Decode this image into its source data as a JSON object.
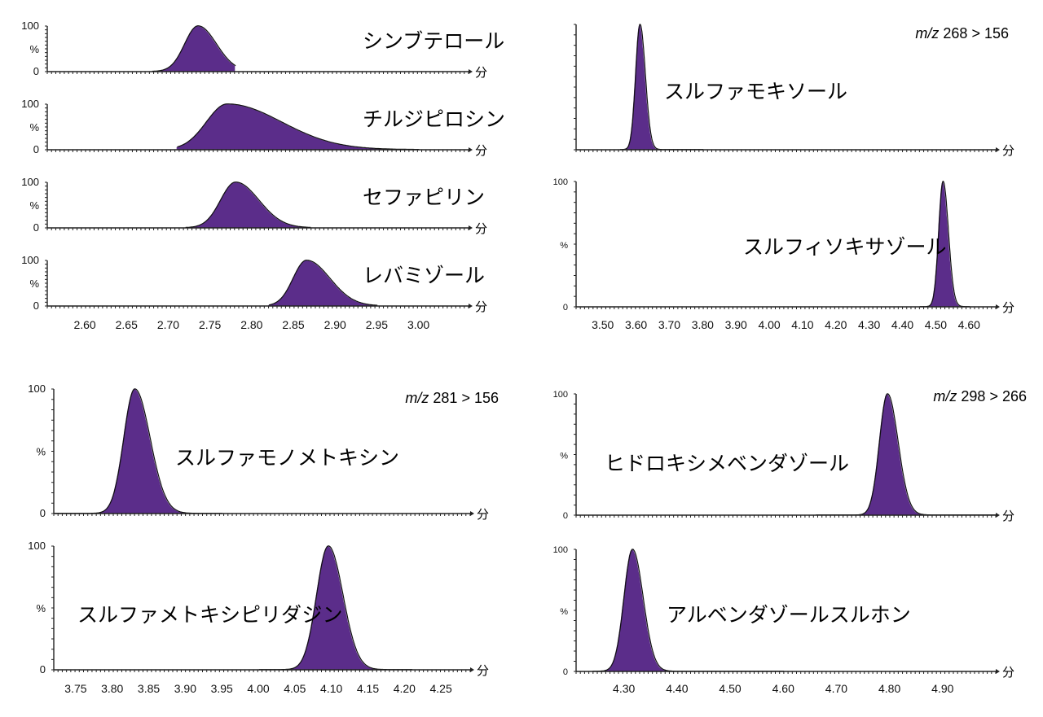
{
  "colors": {
    "peak_fill": "#5b2d8a",
    "peak_outline": "#111111",
    "axis": "#222222"
  },
  "chart_data": [
    {
      "type": "area",
      "x_unit": "分",
      "xlim": [
        2.555,
        3.06
      ],
      "xticks": [
        "2.60",
        "2.65",
        "2.70",
        "2.75",
        "2.80",
        "2.85",
        "2.90",
        "2.95",
        "3.00"
      ],
      "panels": [
        {
          "name": "シンブテロール",
          "yticks": [
            "100",
            "%",
            "0"
          ],
          "apex": 2.735,
          "width": 0.016,
          "tail": 0.006,
          "x_start": 2.68,
          "x_end": 2.78
        },
        {
          "name": "チルジピロシン",
          "yticks": [
            "100",
            "%",
            "0"
          ],
          "apex": 2.77,
          "width": 0.025,
          "tail": 0.04,
          "x_start": 2.71,
          "x_end": 3.0
        },
        {
          "name": "セファピリン",
          "yticks": [
            "100",
            "%",
            "0"
          ],
          "apex": 2.78,
          "width": 0.018,
          "tail": 0.01,
          "x_start": 2.72,
          "x_end": 2.87
        },
        {
          "name": "レバミゾール",
          "yticks": [
            "100",
            "%",
            "0"
          ],
          "apex": 2.865,
          "width": 0.016,
          "tail": 0.012,
          "x_start": 2.82,
          "x_end": 2.95
        }
      ]
    },
    {
      "type": "area",
      "x_unit": "分",
      "xlim": [
        3.42,
        4.68
      ],
      "xticks": [
        "3.50",
        "3.60",
        "3.70",
        "3.80",
        "3.90",
        "4.00",
        "4.10",
        "4.20",
        "4.30",
        "4.40",
        "4.50",
        "4.60"
      ],
      "transition": {
        "prefix": "m/z",
        "text": " 268 > 156"
      },
      "panels": [
        {
          "name": "スルファモキソール",
          "yticks": [],
          "apex": 3.61,
          "width": 0.013,
          "tail": 0.003,
          "x_start": 3.55,
          "x_end": 3.8
        },
        {
          "name": "スルフィソキサゾール",
          "yticks": [
            "100",
            "%",
            "0"
          ],
          "apex": 4.52,
          "width": 0.013,
          "tail": 0.003,
          "x_start": 4.45,
          "x_end": 4.6
        }
      ]
    },
    {
      "type": "area",
      "x_unit": "分",
      "xlim": [
        3.72,
        4.29
      ],
      "xticks": [
        "3.75",
        "3.80",
        "3.85",
        "3.90",
        "3.95",
        "4.00",
        "4.05",
        "4.10",
        "4.15",
        "4.20",
        "4.25"
      ],
      "transition": {
        "prefix": "m/z",
        "text": " 281 > 156"
      },
      "panels": [
        {
          "name": "スルファモノメトキシン",
          "yticks": [
            "100",
            "%",
            "0"
          ],
          "apex": 3.83,
          "width": 0.015,
          "tail": 0.006,
          "x_start": 3.72,
          "x_end": 3.95
        },
        {
          "name": "スルファメトキシピリダジン",
          "yticks": [
            "100",
            "%",
            "0"
          ],
          "apex": 4.095,
          "width": 0.016,
          "tail": 0.004,
          "x_start": 4.0,
          "x_end": 4.21
        }
      ]
    },
    {
      "type": "area",
      "x_unit": "分",
      "xlim": [
        4.21,
        5.0
      ],
      "xticks": [
        "4.30",
        "4.40",
        "4.50",
        "4.60",
        "4.70",
        "4.80",
        "4.90"
      ],
      "transition": {
        "prefix": "m/z",
        "text": " 298 > 266"
      },
      "panels": [
        {
          "name": "ヒドロキシメベンダゾール",
          "yticks": [
            "100",
            "%",
            "0"
          ],
          "apex": 4.795,
          "width": 0.015,
          "tail": 0.005,
          "x_start": 4.66,
          "x_end": 5.0
        },
        {
          "name": "アルベンダゾールスルホン",
          "yticks": [
            "100",
            "%",
            "0"
          ],
          "apex": 4.315,
          "width": 0.016,
          "tail": 0.004,
          "x_start": 4.24,
          "x_end": 4.6
        }
      ]
    }
  ]
}
